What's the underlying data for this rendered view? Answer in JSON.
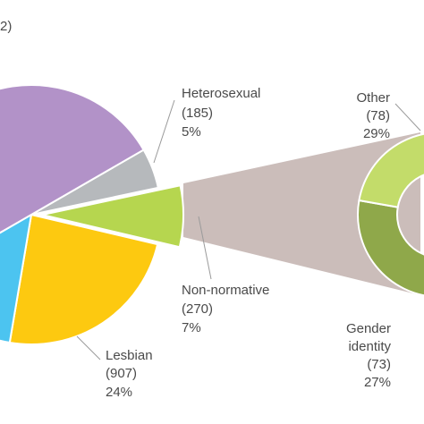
{
  "chart_data": {
    "type": "pie_of_pie",
    "title": "2)",
    "categories": [
      "Heterosexual",
      "Non-normative",
      "Lesbian",
      null,
      null
    ],
    "values": [
      5,
      7,
      24,
      14,
      50
    ],
    "value_labels": [
      "5%",
      "7%",
      "24%",
      null,
      null
    ],
    "counts": [
      185,
      270,
      907,
      null,
      null
    ],
    "count_labels": [
      "(185)",
      "(270)",
      "(907)",
      null,
      null
    ],
    "colors": [
      "#b6b9bc",
      "#b6d64f",
      "#fdc910",
      "#4cc4f0",
      "#b292c8"
    ],
    "exploded": "Non-normative",
    "secondary": {
      "categories": [
        "Other",
        "Gender identity"
      ],
      "values": [
        29,
        27
      ],
      "value_labels": [
        "29%",
        "27%"
      ],
      "counts": [
        78,
        73
      ],
      "count_labels": [
        "(78)",
        "(73)"
      ],
      "colors": [
        "#c3dc6a",
        "#8fa84a"
      ]
    }
  }
}
